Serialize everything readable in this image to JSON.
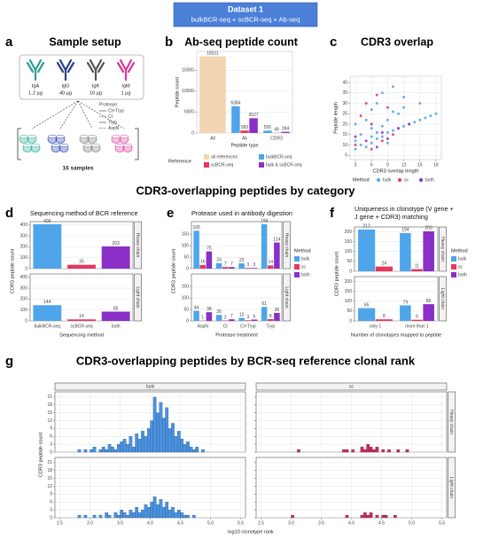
{
  "header": {
    "title": "Dataset 1",
    "subtitle": "bulkBCR-seq + scBCR-seq + Ab-seq"
  },
  "section_title": "CDR3-overlapping peptides by category",
  "sample_setup": {
    "panel": "a",
    "title": "Sample setup",
    "antibodies": [
      {
        "name": "IgA",
        "amount": "1.2 µg"
      },
      {
        "name": "IgG",
        "amount": "40 µg"
      },
      {
        "name": "IgK",
        "amount": "10 µg"
      },
      {
        "name": "IgM",
        "amount": "1 µg"
      }
    ],
    "protease_label": "Protease:",
    "proteases": [
      "Ct+Tryp",
      "Ct",
      "Tryp",
      "AspN"
    ],
    "sample_count": "16 samples"
  },
  "chart_data": [
    {
      "type": "bar",
      "panel": "b",
      "title": "Ab-seq peptide count",
      "xlabel": "Peptide type",
      "ylabel": "Peptide count",
      "categories": [
        "All",
        "Ab",
        "CDR3"
      ],
      "legend_title": "Reference",
      "series": [
        {
          "name": "all references",
          "color": "#f3d6b1",
          "values": [
            18311,
            null,
            null
          ]
        },
        {
          "name": "bulkBCR-seq",
          "color": "#4ea5ea",
          "values": [
            null,
            6384,
            555
          ]
        },
        {
          "name": "scBCR-seq",
          "color": "#e8365d",
          "values": [
            null,
            583,
            49
          ]
        },
        {
          "name": "bulk & scBCR-seq",
          "color": "#8a2fc8",
          "values": [
            null,
            3527,
            284
          ]
        }
      ],
      "ylim": [
        0,
        19500
      ],
      "yticks": [
        0,
        5000,
        10000,
        15000
      ],
      "grid": true,
      "data_labels": true
    },
    {
      "type": "scatter",
      "panel": "c",
      "title": "CDR3 overlap",
      "xlabel": "CDR3 overlap length",
      "ylabel": "Peptide length",
      "legend_title": "Method",
      "series": [
        {
          "name": "bulk",
          "color": "#4ea5ea",
          "x": [
            3,
            3,
            3,
            4,
            4,
            5,
            5,
            6,
            6,
            6,
            7,
            7,
            8,
            8,
            9,
            9,
            10,
            10,
            11,
            11,
            12,
            12,
            13,
            14,
            15,
            15,
            16,
            17,
            18,
            6,
            8,
            10,
            12,
            7,
            9
          ],
          "y": [
            8,
            12,
            20,
            10,
            15,
            9,
            22,
            11,
            18,
            27,
            13,
            30,
            14,
            35,
            16,
            22,
            17,
            38,
            18,
            25,
            19,
            28,
            20,
            21,
            22,
            30,
            23,
            24,
            25,
            14,
            19,
            26,
            33,
            16,
            11
          ]
        },
        {
          "name": "sc",
          "color": "#e8365d",
          "x": [
            3,
            4,
            5,
            6,
            7,
            8,
            9,
            10
          ],
          "y": [
            10,
            24,
            30,
            8,
            34,
            12,
            28,
            15
          ]
        },
        {
          "name": "both",
          "color": "#8a2fc8",
          "x": [
            3,
            5,
            6,
            7,
            8,
            9,
            11,
            13
          ],
          "y": [
            14,
            12,
            20,
            9,
            16,
            13,
            18,
            20
          ]
        }
      ],
      "xlim": [
        2,
        19
      ],
      "xticks": [
        3,
        6,
        9,
        12,
        15,
        18
      ],
      "ylim": [
        3,
        43
      ],
      "yticks": [
        5,
        10,
        15,
        20,
        25,
        30,
        35,
        40
      ],
      "grid": true
    },
    {
      "type": "bar",
      "panel": "d",
      "title": "Sequencing method of BCR reference",
      "xlabel": "Sequencing method",
      "ylabel": "CDR3 peptide count",
      "categories": [
        "bulkBCR-seq",
        "scBCR-seq",
        "both"
      ],
      "colors": [
        "#4ea5ea",
        "#e8365d",
        "#8a2fc8"
      ],
      "facets": [
        {
          "label": "Heavy chain",
          "values": [
            406,
            35,
            203
          ]
        },
        {
          "label": "Light chain",
          "values": [
            144,
            14,
            85
          ]
        }
      ],
      "ylim": [
        0,
        430
      ],
      "yticks": [
        0,
        100,
        200,
        300,
        400
      ],
      "grid": true,
      "data_labels": true
    },
    {
      "type": "bar",
      "panel": "e",
      "title": "Protease used in antibody digestion",
      "xlabel": "Protease treatment",
      "ylabel": "CDR3 peptide count",
      "categories": [
        "AspN",
        "Ct",
        "Ct+Tryp",
        "Tryp"
      ],
      "legend_title": "Method",
      "series": [
        {
          "name": "bulk",
          "color": "#4ea5ea"
        },
        {
          "name": "sc",
          "color": "#e8365d"
        },
        {
          "name": "both",
          "color": "#8a2fc8"
        }
      ],
      "facets": [
        {
          "label": "Heavy chain",
          "values": [
            [
              165,
              24,
              23,
              194
            ],
            [
              16,
              7,
              3,
              14
            ],
            [
              75,
              7,
              3,
              114
            ]
          ]
        },
        {
          "label": "Light chain",
          "values": [
            [
              44,
              26,
              13,
              61
            ],
            [
              1,
              2,
              3,
              8
            ],
            [
              38,
              7,
              6,
              35
            ]
          ]
        }
      ],
      "ylim": [
        0,
        205
      ],
      "yticks": [
        0,
        50,
        100,
        150
      ],
      "grid": true,
      "data_labels": true
    },
    {
      "type": "bar",
      "panel": "f",
      "title_lines": [
        "Uniqueness in clonotype (V gene +",
        "J gene + CDR3) matching"
      ],
      "xlabel": "Number of clonotypes mapped to peptide",
      "ylabel": "CDR3 peptide count",
      "categories": [
        "only 1",
        "more than 1"
      ],
      "legend_title": "Method",
      "series": [
        {
          "name": "bulk",
          "color": "#4ea5ea"
        },
        {
          "name": "sc",
          "color": "#e8365d"
        },
        {
          "name": "both",
          "color": "#8a2fc8"
        }
      ],
      "facets": [
        {
          "label": "Heavy chain",
          "values": [
            [
              212,
              194
            ],
            [
              24,
              11
            ],
            [
              null,
              203
            ]
          ]
        },
        {
          "label": "Light chain",
          "values": [
            [
              65,
              79
            ],
            [
              8,
              6
            ],
            [
              null,
              85
            ]
          ]
        }
      ],
      "ylim": [
        0,
        225
      ],
      "yticks": [
        0,
        50,
        100,
        150,
        200
      ],
      "grid": true,
      "data_labels": true
    },
    {
      "type": "histogram",
      "panel": "g",
      "title": "CDR3-overlapping peptides by BCR-seq reference clonal rank",
      "xlabel": "log10 clonotype rank",
      "ylabel": "CDR3 peptide count",
      "bins": [
        2.5,
        2.55,
        2.6,
        2.65,
        2.7,
        2.75,
        2.8,
        2.85,
        2.9,
        2.95,
        3,
        3.05,
        3.1,
        3.15,
        3.2,
        3.25,
        3.3,
        3.35,
        3.4,
        3.45,
        3.5,
        3.55,
        3.6,
        3.65,
        3.7,
        3.75,
        3.8,
        3.85,
        3.9,
        3.95,
        4,
        4.05,
        4.1,
        4.15,
        4.2,
        4.25,
        4.3,
        4.35,
        4.4,
        4.45,
        4.5,
        4.55,
        4.6,
        4.65,
        4.7,
        4.75,
        4.8,
        4.85,
        4.9,
        4.95,
        5,
        5.05,
        5.1,
        5.15,
        5.2,
        5.25,
        5.3,
        5.35,
        5.4,
        5.45,
        5.5
      ],
      "facet_rows": [
        "Heavy chain",
        "Light chain"
      ],
      "facets": [
        {
          "name": "bulk",
          "color": "#4a93de",
          "counts": [
            [
              0,
              0,
              0,
              0,
              0,
              0,
              1,
              0,
              1,
              0,
              1,
              2,
              0,
              1,
              2,
              1,
              3,
              2,
              1,
              3,
              4,
              5,
              3,
              6,
              2,
              7,
              5,
              8,
              6,
              9,
              12,
              21,
              15,
              19,
              13,
              17,
              9,
              11,
              6,
              8,
              5,
              3,
              4,
              2,
              1,
              2,
              0,
              1,
              0,
              0,
              0,
              0,
              0,
              0,
              0,
              0,
              0,
              0,
              0,
              0
            ],
            [
              0,
              0,
              0,
              0,
              0,
              0,
              1,
              0,
              1,
              0,
              0,
              1,
              0,
              1,
              0,
              2,
              1,
              0,
              2,
              1,
              3,
              2,
              1,
              3,
              2,
              4,
              2,
              3,
              5,
              4,
              6,
              8,
              5,
              7,
              4,
              6,
              3,
              4,
              2,
              3,
              2,
              1,
              1,
              0,
              1,
              0,
              0,
              0,
              0,
              0,
              0,
              0,
              0,
              0,
              0,
              0,
              0,
              0,
              0,
              0
            ]
          ]
        },
        {
          "name": "sc",
          "color": "#d6264f",
          "counts": [
            [
              0,
              0,
              0,
              0,
              0,
              0,
              0,
              0,
              0,
              0,
              0,
              0,
              1,
              0,
              0,
              0,
              0,
              0,
              0,
              0,
              0,
              0,
              0,
              0,
              0,
              0,
              0,
              1,
              1,
              0,
              1,
              0,
              0,
              2,
              1,
              3,
              2,
              1,
              2,
              0,
              1,
              0,
              1,
              0,
              0,
              1,
              0,
              0,
              1,
              0,
              0,
              0,
              0,
              0,
              0,
              0,
              0,
              0,
              0,
              0
            ],
            [
              0,
              0,
              0,
              0,
              0,
              0,
              0,
              0,
              0,
              0,
              1,
              0,
              0,
              0,
              0,
              0,
              0,
              0,
              0,
              0,
              0,
              0,
              0,
              0,
              0,
              0,
              0,
              0,
              1,
              0,
              0,
              0,
              0,
              1,
              2,
              1,
              2,
              0,
              1,
              0,
              1,
              1,
              0,
              0,
              1,
              0,
              0,
              0,
              0,
              0,
              0,
              0,
              0,
              0,
              0,
              0,
              0,
              0,
              0,
              0
            ]
          ]
        }
      ],
      "xlim": [
        2.42,
        5.58
      ],
      "xticks": [
        {
          "value": 2.5,
          "label": "2.5"
        },
        {
          "value": 3,
          "label": "3.0"
        },
        {
          "value": 3.5,
          "label": "3.5"
        },
        {
          "value": 4,
          "label": "4.0"
        },
        {
          "value": 4.5,
          "label": "4.5"
        },
        {
          "value": 5,
          "label": "5.0"
        },
        {
          "value": 5.5,
          "label": "5.5"
        }
      ],
      "ylim": [
        0,
        23
      ],
      "yticks": [
        0,
        3,
        6,
        9,
        12,
        15,
        18,
        21
      ],
      "grid": true
    }
  ]
}
